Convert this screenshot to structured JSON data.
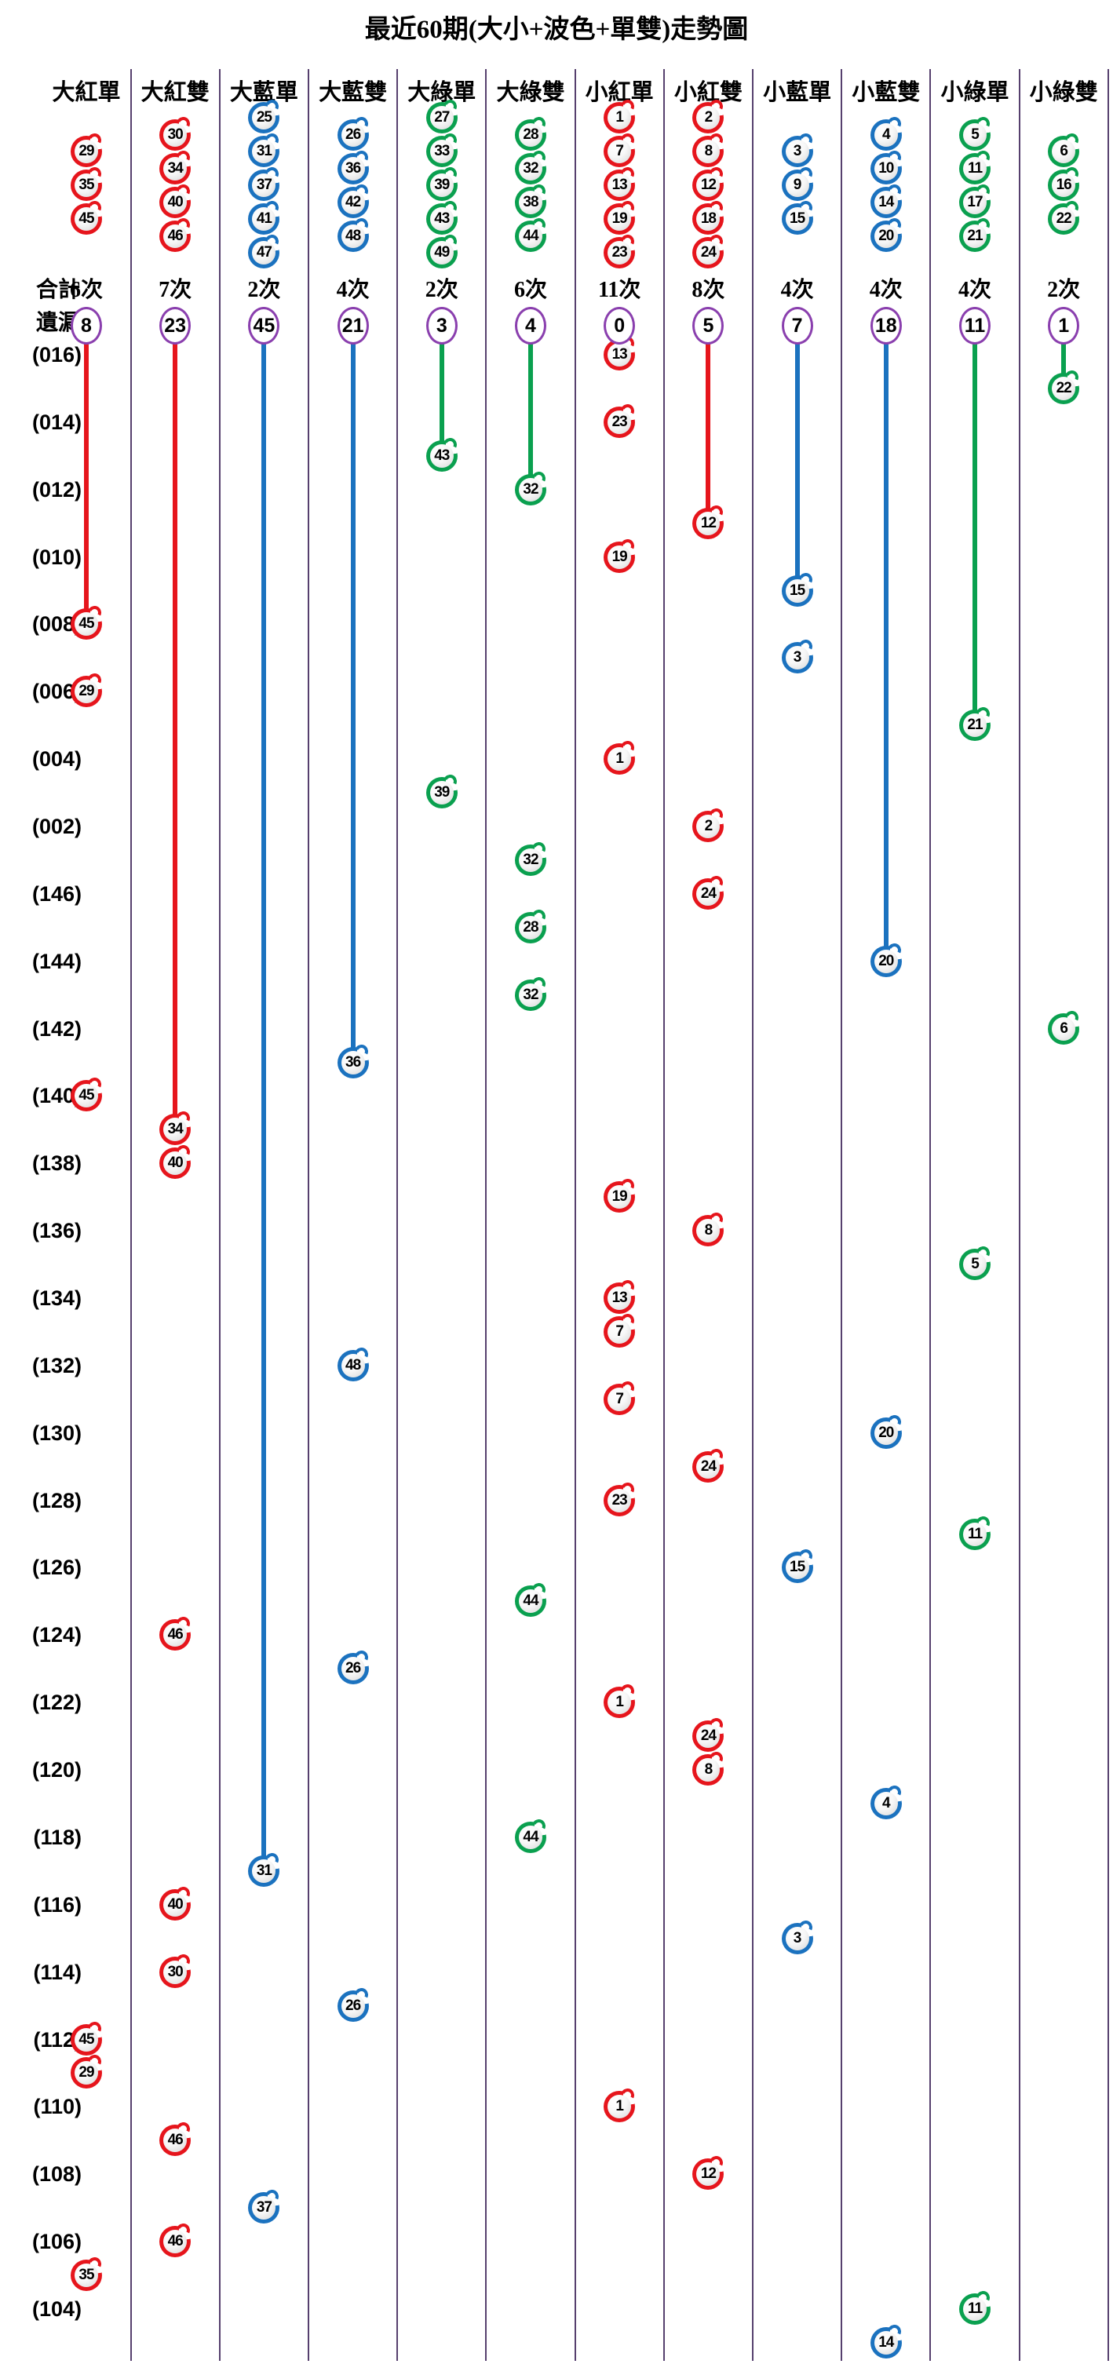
{
  "title": "最近60期(大小+波色+單雙)走勢圖",
  "left_labels": {
    "total": "合計",
    "miss": "遺漏"
  },
  "colors": {
    "red": "#e6151c",
    "blue": "#1b72bf",
    "green": "#0aa04f",
    "divider": "#56406e",
    "miss_circle_stroke": "#8a3fae",
    "background": "#ffffff",
    "text": "#000000"
  },
  "chart_data": {
    "type": "scatter",
    "description": "Lottery big/small + color-wave + odd/even trend chart for the last 60 draws; one ball per draw row, placed in its category column; a colored line runs from each category's miss-count circle down to its most recent hit row.",
    "columns": [
      {
        "label": "大紅單",
        "color": "red",
        "top_balls": [
          29,
          35,
          45
        ],
        "total": "6次",
        "miss": 8
      },
      {
        "label": "大紅雙",
        "color": "red",
        "top_balls": [
          30,
          34,
          40,
          46
        ],
        "total": "7次",
        "miss": 23
      },
      {
        "label": "大藍單",
        "color": "blue",
        "top_balls": [
          25,
          31,
          37,
          41,
          47
        ],
        "total": "2次",
        "miss": 45
      },
      {
        "label": "大藍雙",
        "color": "blue",
        "top_balls": [
          26,
          36,
          42,
          48
        ],
        "total": "4次",
        "miss": 21
      },
      {
        "label": "大綠單",
        "color": "green",
        "top_balls": [
          27,
          33,
          39,
          43,
          49
        ],
        "total": "2次",
        "miss": 3
      },
      {
        "label": "大綠雙",
        "color": "green",
        "top_balls": [
          28,
          32,
          38,
          44
        ],
        "total": "6次",
        "miss": 4
      },
      {
        "label": "小紅單",
        "color": "red",
        "top_balls": [
          1,
          7,
          13,
          19,
          23
        ],
        "total": "11次",
        "miss": 0
      },
      {
        "label": "小紅雙",
        "color": "red",
        "top_balls": [
          2,
          8,
          12,
          18,
          24
        ],
        "total": "8次",
        "miss": 5
      },
      {
        "label": "小藍單",
        "color": "blue",
        "top_balls": [
          3,
          9,
          15
        ],
        "total": "4次",
        "miss": 7
      },
      {
        "label": "小藍雙",
        "color": "blue",
        "top_balls": [
          4,
          10,
          14,
          20
        ],
        "total": "4次",
        "miss": 18
      },
      {
        "label": "小綠單",
        "color": "green",
        "top_balls": [
          5,
          11,
          17,
          21
        ],
        "total": "4次",
        "miss": 11
      },
      {
        "label": "小綠雙",
        "color": "green",
        "top_balls": [
          6,
          16,
          22
        ],
        "total": "2次",
        "miss": 1
      }
    ],
    "row_labels": [
      "(016)",
      "(014)",
      "(012)",
      "(010)",
      "(008)",
      "(006)",
      "(004)",
      "(002)",
      "(146)",
      "(144)",
      "(142)",
      "(140)",
      "(138)",
      "(136)",
      "(134)",
      "(132)",
      "(130)",
      "(128)",
      "(126)",
      "(124)",
      "(122)",
      "(120)",
      "(118)",
      "(116)",
      "(114)",
      "(112)",
      "(110)",
      "(108)",
      "(106)",
      "(104)"
    ],
    "rows_per_label": 2,
    "total_rows": 60,
    "points": [
      {
        "row": 0,
        "col": 6,
        "value": 13
      },
      {
        "row": 1,
        "col": 11,
        "value": 22
      },
      {
        "row": 2,
        "col": 6,
        "value": 23
      },
      {
        "row": 3,
        "col": 4,
        "value": 43
      },
      {
        "row": 4,
        "col": 5,
        "value": 32
      },
      {
        "row": 5,
        "col": 7,
        "value": 12
      },
      {
        "row": 6,
        "col": 6,
        "value": 19
      },
      {
        "row": 7,
        "col": 8,
        "value": 15
      },
      {
        "row": 8,
        "col": 0,
        "value": 45
      },
      {
        "row": 9,
        "col": 8,
        "value": 3
      },
      {
        "row": 10,
        "col": 0,
        "value": 29
      },
      {
        "row": 11,
        "col": 10,
        "value": 21
      },
      {
        "row": 12,
        "col": 6,
        "value": 1
      },
      {
        "row": 13,
        "col": 4,
        "value": 39
      },
      {
        "row": 14,
        "col": 7,
        "value": 2
      },
      {
        "row": 15,
        "col": 5,
        "value": 32
      },
      {
        "row": 16,
        "col": 7,
        "value": 24
      },
      {
        "row": 17,
        "col": 5,
        "value": 28
      },
      {
        "row": 18,
        "col": 9,
        "value": 20
      },
      {
        "row": 19,
        "col": 5,
        "value": 32
      },
      {
        "row": 20,
        "col": 11,
        "value": 6
      },
      {
        "row": 21,
        "col": 3,
        "value": 36
      },
      {
        "row": 22,
        "col": 0,
        "value": 45
      },
      {
        "row": 23,
        "col": 1,
        "value": 34
      },
      {
        "row": 24,
        "col": 1,
        "value": 40
      },
      {
        "row": 25,
        "col": 6,
        "value": 19
      },
      {
        "row": 26,
        "col": 7,
        "value": 8
      },
      {
        "row": 27,
        "col": 10,
        "value": 5
      },
      {
        "row": 28,
        "col": 6,
        "value": 13
      },
      {
        "row": 29,
        "col": 6,
        "value": 7
      },
      {
        "row": 30,
        "col": 3,
        "value": 48
      },
      {
        "row": 31,
        "col": 6,
        "value": 7
      },
      {
        "row": 32,
        "col": 9,
        "value": 20
      },
      {
        "row": 33,
        "col": 7,
        "value": 24
      },
      {
        "row": 34,
        "col": 6,
        "value": 23
      },
      {
        "row": 35,
        "col": 10,
        "value": 11
      },
      {
        "row": 36,
        "col": 8,
        "value": 15
      },
      {
        "row": 37,
        "col": 5,
        "value": 44
      },
      {
        "row": 38,
        "col": 1,
        "value": 46
      },
      {
        "row": 39,
        "col": 3,
        "value": 26
      },
      {
        "row": 40,
        "col": 6,
        "value": 1
      },
      {
        "row": 41,
        "col": 7,
        "value": 24
      },
      {
        "row": 42,
        "col": 7,
        "value": 8
      },
      {
        "row": 43,
        "col": 9,
        "value": 4
      },
      {
        "row": 44,
        "col": 5,
        "value": 44
      },
      {
        "row": 45,
        "col": 2,
        "value": 31
      },
      {
        "row": 46,
        "col": 1,
        "value": 40
      },
      {
        "row": 47,
        "col": 8,
        "value": 3
      },
      {
        "row": 48,
        "col": 1,
        "value": 30
      },
      {
        "row": 49,
        "col": 3,
        "value": 26
      },
      {
        "row": 50,
        "col": 0,
        "value": 45
      },
      {
        "row": 51,
        "col": 0,
        "value": 29
      },
      {
        "row": 52,
        "col": 6,
        "value": 1
      },
      {
        "row": 53,
        "col": 1,
        "value": 46
      },
      {
        "row": 54,
        "col": 7,
        "value": 12
      },
      {
        "row": 55,
        "col": 2,
        "value": 37
      },
      {
        "row": 56,
        "col": 1,
        "value": 46
      },
      {
        "row": 57,
        "col": 0,
        "value": 35
      },
      {
        "row": 58,
        "col": 10,
        "value": 11
      },
      {
        "row": 59,
        "col": 9,
        "value": 14
      }
    ]
  }
}
